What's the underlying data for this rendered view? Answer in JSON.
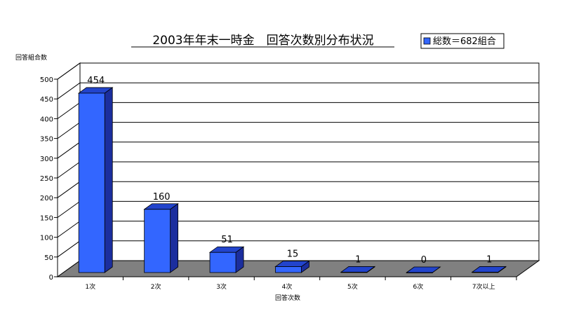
{
  "chart_data": {
    "type": "bar",
    "title": "2003年年末一時金　回答次数別分布状況",
    "ylabel": "回答組合数",
    "xlabel": "回答次数",
    "categories": [
      "1次",
      "2次",
      "3次",
      "4次",
      "5次",
      "6次",
      "7次以上"
    ],
    "series": [
      {
        "name": "総数＝682組合",
        "values": [
          454,
          160,
          51,
          15,
          1,
          0,
          1
        ]
      }
    ],
    "ylim": [
      0,
      500
    ],
    "yticks": [
      0,
      50,
      100,
      150,
      200,
      250,
      300,
      350,
      400,
      450,
      500
    ],
    "grid": true,
    "legend_position": "top-right",
    "style": "3d",
    "colors": {
      "bar_front": "#3366ff",
      "bar_side": "#1b2e9e",
      "bar_top": "#2244cc",
      "floor": "#808080"
    }
  }
}
